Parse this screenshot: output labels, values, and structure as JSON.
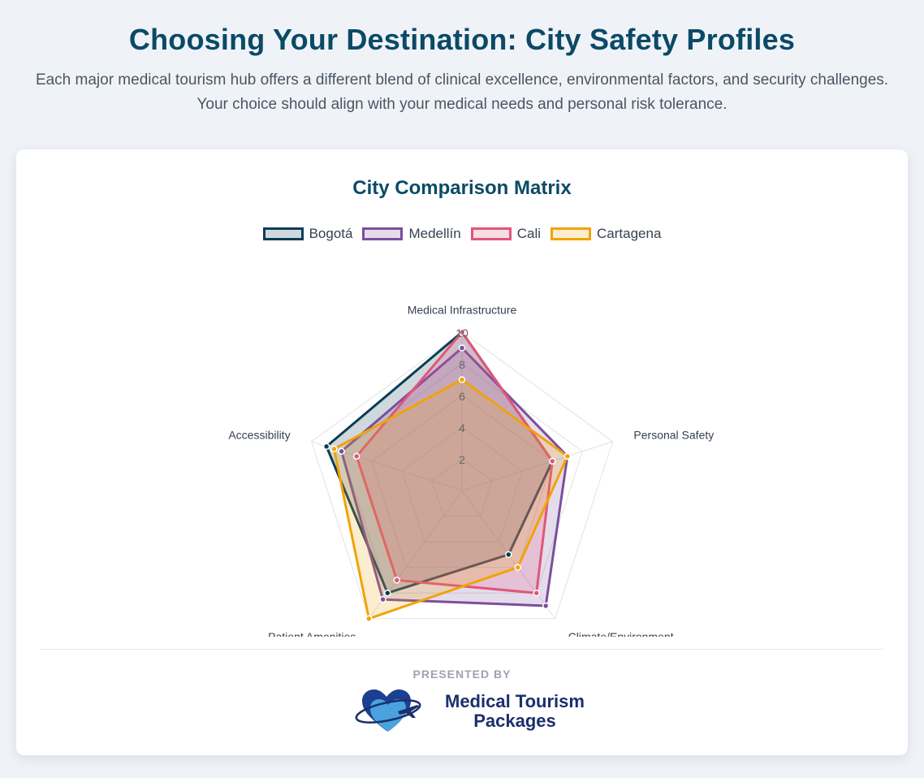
{
  "header": {
    "title": "Choosing Your Destination: City Safety Profiles",
    "subtitle": "Each major medical tourism hub offers a different blend of clinical excellence, environmental factors, and security challenges. Your choice should align with your medical needs and personal risk tolerance."
  },
  "card": {
    "title": "City Comparison Matrix"
  },
  "chart_data": {
    "type": "radar",
    "title": "City Comparison Matrix",
    "axes": [
      "Medical Infrastructure",
      "Personal Safety",
      "Climate/Environment",
      "Patient Amenities",
      "Accessibility"
    ],
    "rlim": [
      0,
      10
    ],
    "ticks": [
      "2",
      "4",
      "6",
      "8",
      "10"
    ],
    "grid": true,
    "legend_position": "top",
    "series": [
      {
        "name": "Bogotá",
        "values": [
          10,
          6,
          5,
          8,
          9
        ],
        "color": "#0b3d56",
        "fill": "rgba(11,61,86,0.2)"
      },
      {
        "name": "Medellín",
        "values": [
          9,
          7,
          9,
          8.5,
          8
        ],
        "color": "#7b4f9d",
        "fill": "rgba(123,79,157,0.2)"
      },
      {
        "name": "Cali",
        "values": [
          10,
          6,
          8,
          7,
          7
        ],
        "color": "#e0567a",
        "fill": "rgba(224,86,122,0.2)"
      },
      {
        "name": "Cartagena",
        "values": [
          7,
          7,
          6,
          10,
          8.5
        ],
        "color": "#f0a30a",
        "fill": "rgba(240,163,10,0.2)"
      }
    ]
  },
  "footer": {
    "presented_by": "PRESENTED BY",
    "brand_line1": "Medical Tourism",
    "brand_line2": "Packages",
    "logo_icon": "heart-airplane-icon",
    "logo_colors": {
      "heart_dark": "#1d3f91",
      "heart_light": "#4aa3de",
      "orbit": "#1b2f6e"
    }
  }
}
